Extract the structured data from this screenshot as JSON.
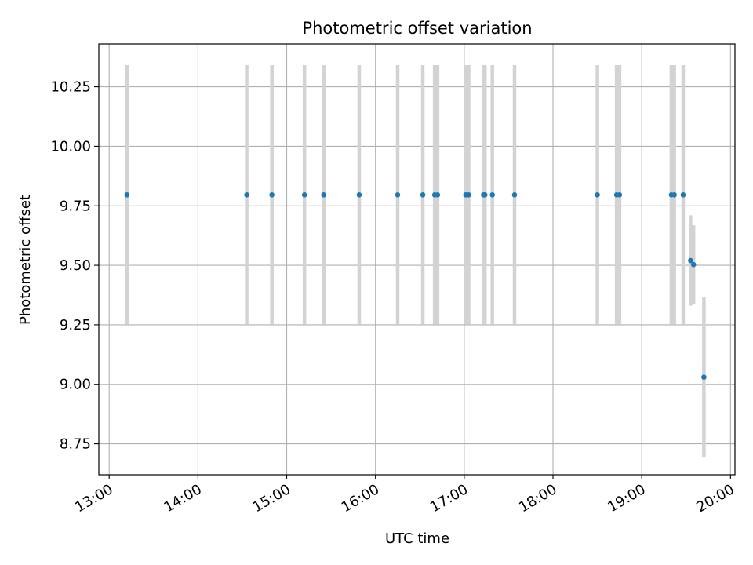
{
  "chart_data": {
    "type": "scatter",
    "title": "Photometric offset variation",
    "xlabel": "UTC time",
    "ylabel": "Photometric offset",
    "x_ticks": [
      "13:00",
      "14:00",
      "15:00",
      "16:00",
      "17:00",
      "18:00",
      "19:00",
      "20:00"
    ],
    "y_ticks": [
      "8.75",
      "9.00",
      "9.25",
      "9.50",
      "9.75",
      "10.00",
      "10.25"
    ],
    "xlim": [
      "12:53",
      "20:03"
    ],
    "ylim": [
      8.62,
      10.43
    ],
    "grid": true,
    "colors": {
      "point": "#1f77b4",
      "errorbar": "#d3d3d3",
      "grid": "#b0b0b0"
    },
    "points": [
      {
        "t": "13:12",
        "y": 9.796,
        "err": 0.545
      },
      {
        "t": "14:33",
        "y": 9.796,
        "err": 0.545
      },
      {
        "t": "14:50",
        "y": 9.796,
        "err": 0.545
      },
      {
        "t": "15:12",
        "y": 9.796,
        "err": 0.545
      },
      {
        "t": "15:25",
        "y": 9.796,
        "err": 0.545
      },
      {
        "t": "15:49",
        "y": 9.796,
        "err": 0.545
      },
      {
        "t": "16:15",
        "y": 9.796,
        "err": 0.545
      },
      {
        "t": "16:32",
        "y": 9.796,
        "err": 0.545
      },
      {
        "t": "16:40",
        "y": 9.796,
        "err": 0.545
      },
      {
        "t": "16:42",
        "y": 9.796,
        "err": 0.545
      },
      {
        "t": "17:01",
        "y": 9.796,
        "err": 0.545
      },
      {
        "t": "17:03",
        "y": 9.796,
        "err": 0.545
      },
      {
        "t": "17:13",
        "y": 9.796,
        "err": 0.545
      },
      {
        "t": "17:14",
        "y": 9.796,
        "err": 0.545
      },
      {
        "t": "17:19",
        "y": 9.796,
        "err": 0.545
      },
      {
        "t": "17:34",
        "y": 9.796,
        "err": 0.545
      },
      {
        "t": "18:30",
        "y": 9.796,
        "err": 0.545
      },
      {
        "t": "18:43",
        "y": 9.796,
        "err": 0.545
      },
      {
        "t": "18:45",
        "y": 9.796,
        "err": 0.545
      },
      {
        "t": "19:20",
        "y": 9.796,
        "err": 0.545
      },
      {
        "t": "19:22",
        "y": 9.796,
        "err": 0.545
      },
      {
        "t": "19:28",
        "y": 9.796,
        "err": 0.545
      },
      {
        "t": "19:33",
        "y": 9.52,
        "err": 0.19
      },
      {
        "t": "19:35",
        "y": 9.503,
        "err": 0.165
      },
      {
        "t": "19:42",
        "y": 9.03,
        "err": 0.335
      }
    ]
  }
}
